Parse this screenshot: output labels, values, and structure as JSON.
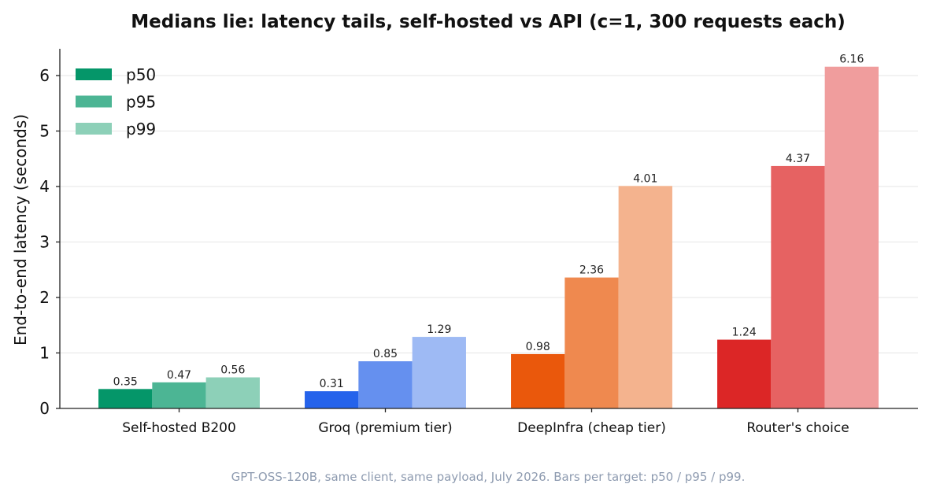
{
  "chart_data": {
    "type": "bar",
    "title": "Medians lie: latency tails, self-hosted vs API (c=1, 300 requests each)",
    "ylabel": "End-to-end latency (seconds)",
    "xlabel": "",
    "ylim": [
      0,
      6.5
    ],
    "yticks": [
      "0",
      "1",
      "2",
      "3",
      "4",
      "5",
      "6"
    ],
    "grid": true,
    "legend_position": "top-left",
    "categories": [
      "Self-hosted B200",
      "Groq (premium tier)",
      "DeepInfra (cheap tier)",
      "Router's choice"
    ],
    "series": [
      {
        "name": "p50",
        "values": [
          0.35,
          0.31,
          0.98,
          1.24
        ],
        "labels": [
          "0.35",
          "0.31",
          "0.98",
          "1.24"
        ]
      },
      {
        "name": "p95",
        "values": [
          0.47,
          0.85,
          2.36,
          4.37
        ],
        "labels": [
          "0.47",
          "0.85",
          "2.36",
          "4.37"
        ]
      },
      {
        "name": "p99",
        "values": [
          0.56,
          1.29,
          4.01,
          6.16
        ],
        "labels": [
          "0.56",
          "1.29",
          "4.01",
          "6.16"
        ]
      }
    ],
    "bar_colors": [
      [
        "#059669",
        "#4cb594",
        "#8dd0b8"
      ],
      [
        "#2563eb",
        "#6590ef",
        "#9ebaf4"
      ],
      [
        "#ea580c",
        "#ef894f",
        "#f4b38e"
      ],
      [
        "#dc2626",
        "#e66262",
        "#f09d9d"
      ]
    ],
    "legend_colors": [
      "#059669",
      "#4cb594",
      "#8dd0b8"
    ],
    "caption": "GPT-OSS-120B, same client, same payload, July 2026. Bars per target: p50 / p95 / p99."
  }
}
